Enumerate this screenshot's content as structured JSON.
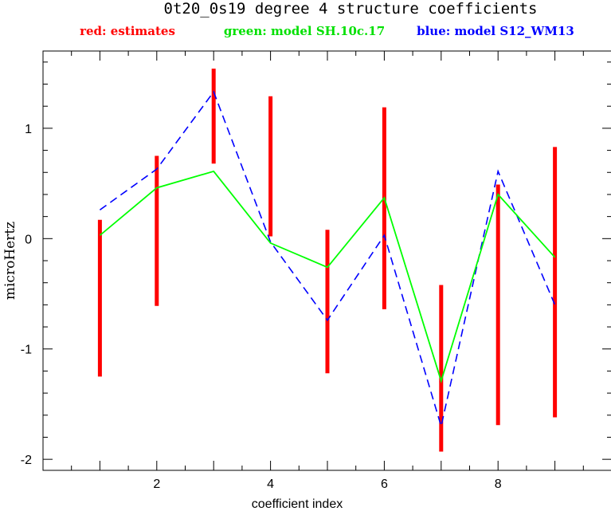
{
  "chart_data": {
    "type": "line",
    "title": "0t20_0s19 degree 4 structure coefficients",
    "xlabel": "coefficient index",
    "ylabel": "microHertz",
    "xlim": [
      0,
      10
    ],
    "ylim": [
      -2.1,
      1.7
    ],
    "xticks": [
      2,
      4,
      6,
      8
    ],
    "yticks": [
      -2,
      -1,
      0,
      1
    ],
    "x": [
      1,
      2,
      3,
      4,
      5,
      6,
      7,
      8,
      9
    ],
    "legend_placement": "top",
    "series": [
      {
        "name": "red: estimates",
        "kind": "errorbar",
        "color": "#ff0000",
        "low": [
          -1.25,
          -0.61,
          0.68,
          0.02,
          -1.22,
          -0.64,
          -1.93,
          -1.69,
          -1.62
        ],
        "high": [
          0.17,
          0.75,
          1.54,
          1.29,
          0.08,
          1.19,
          -0.42,
          0.49,
          0.83
        ]
      },
      {
        "name": "green: model SH.10c.17",
        "kind": "line",
        "color": "#00ff00",
        "values": [
          0.03,
          0.46,
          0.61,
          -0.04,
          -0.26,
          0.37,
          -1.29,
          0.4,
          -0.17
        ]
      },
      {
        "name": "blue: model S12_WM13",
        "kind": "dashed-line",
        "color": "#0000ff",
        "values": [
          0.26,
          0.63,
          1.33,
          -0.03,
          -0.74,
          0.03,
          -1.7,
          0.61,
          -0.6
        ]
      }
    ]
  }
}
